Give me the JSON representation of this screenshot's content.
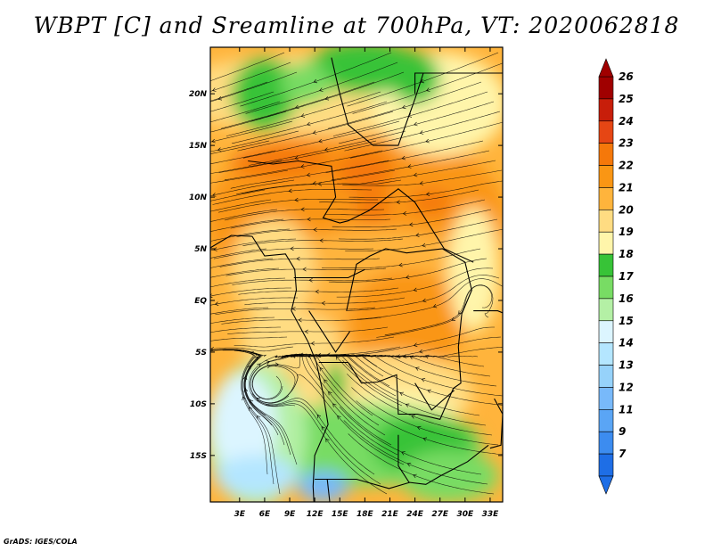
{
  "title": "WBPT [C] and Sreamline at 700hPa, VT: 2020062818",
  "credit": "GrADS: IGES/COLA",
  "map": {
    "lon_range": [
      -0.5,
      34.5
    ],
    "lat_range": [
      -19.5,
      24.5
    ],
    "x_ticks": [
      {
        "lon": 3,
        "label": "3E"
      },
      {
        "lon": 6,
        "label": "6E"
      },
      {
        "lon": 9,
        "label": "9E"
      },
      {
        "lon": 12,
        "label": "12E"
      },
      {
        "lon": 15,
        "label": "15E"
      },
      {
        "lon": 18,
        "label": "18E"
      },
      {
        "lon": 21,
        "label": "21E"
      },
      {
        "lon": 24,
        "label": "24E"
      },
      {
        "lon": 27,
        "label": "27E"
      },
      {
        "lon": 30,
        "label": "30E"
      },
      {
        "lon": 33,
        "label": "33E"
      }
    ],
    "y_ticks": [
      {
        "lat": 20,
        "label": "20N"
      },
      {
        "lat": 15,
        "label": "15N"
      },
      {
        "lat": 10,
        "label": "10N"
      },
      {
        "lat": 5,
        "label": "5N"
      },
      {
        "lat": 0,
        "label": "EQ"
      },
      {
        "lat": -5,
        "label": "5S"
      },
      {
        "lat": -10,
        "label": "10S"
      },
      {
        "lat": -15,
        "label": "15S"
      }
    ]
  },
  "colorbar": {
    "levels": [
      {
        "label": "7",
        "color": "#1e6ee6"
      },
      {
        "label": "9",
        "color": "#3c8cf0"
      },
      {
        "label": "11",
        "color": "#5aa5f5"
      },
      {
        "label": "12",
        "color": "#78b9fa"
      },
      {
        "label": "13",
        "color": "#96d2fa"
      },
      {
        "label": "14",
        "color": "#b4e6ff"
      },
      {
        "label": "15",
        "color": "#dcf5ff"
      },
      {
        "label": "16",
        "color": "#b4f0a5"
      },
      {
        "label": "17",
        "color": "#78dc64"
      },
      {
        "label": "18",
        "color": "#37c337"
      },
      {
        "label": "19",
        "color": "#fff5aa"
      },
      {
        "label": "20",
        "color": "#ffdc82"
      },
      {
        "label": "21",
        "color": "#ffb43c"
      },
      {
        "label": "22",
        "color": "#fa9614"
      },
      {
        "label": "23",
        "color": "#f5780a"
      },
      {
        "label": "24",
        "color": "#e64614"
      },
      {
        "label": "25",
        "color": "#c81e0a"
      },
      {
        "label": "26",
        "color": "#a00000"
      }
    ],
    "under_color": "#1e6ee6",
    "over_color": "#a00000"
  },
  "regions": [
    {
      "c": "#fa9614",
      "lat": 8,
      "lon": 17,
      "rlat": 9,
      "rlon": 18
    },
    {
      "c": "#ffb43c",
      "lat": 1,
      "lon": 20,
      "rlat": 6,
      "rlon": 14
    },
    {
      "c": "#ffdc82",
      "lat": 3,
      "lon": 7,
      "rlat": 5,
      "rlon": 5
    },
    {
      "c": "#fa9614",
      "lat": -2,
      "lon": 23,
      "rlat": 5,
      "rlon": 7
    },
    {
      "c": "#ffdc82",
      "lat": 20,
      "lon": 14,
      "rlat": 4,
      "rlon": 20
    },
    {
      "c": "#fff5aa",
      "lat": 19,
      "lon": 27,
      "rlat": 5,
      "rlon": 8
    },
    {
      "c": "#37c337",
      "lat": 20,
      "lon": 6,
      "rlat": 3.5,
      "rlon": 4
    },
    {
      "c": "#37c337",
      "lat": 22.5,
      "lon": 18,
      "rlat": 2.5,
      "rlon": 7
    },
    {
      "c": "#78dc64",
      "lat": 21,
      "lon": 11,
      "rlat": 2,
      "rlon": 3
    },
    {
      "c": "#37c337",
      "lat": 21.5,
      "lon": 24,
      "rlat": 2.5,
      "rlon": 3
    },
    {
      "c": "#f5780a",
      "lat": 13.5,
      "lon": 8,
      "rlat": 1.5,
      "rlon": 6
    },
    {
      "c": "#f5780a",
      "lat": 12.5,
      "lon": 18,
      "rlat": 2,
      "rlon": 3.5
    },
    {
      "c": "#f5780a",
      "lat": 9,
      "lon": 19,
      "rlat": 1.5,
      "rlon": 2
    },
    {
      "c": "#f5780a",
      "lat": 9.5,
      "lon": 26,
      "rlat": 1.2,
      "rlon": 2.5
    },
    {
      "c": "#ffdc82",
      "lat": -4,
      "lon": 9,
      "rlat": 3,
      "rlon": 6
    },
    {
      "c": "#ffdc82",
      "lat": -9,
      "lon": 20,
      "rlat": 4,
      "rlon": 11
    },
    {
      "c": "#fff5aa",
      "lat": -11,
      "lon": 22,
      "rlat": 2.5,
      "rlon": 7
    },
    {
      "c": "#78dc64",
      "lat": -14,
      "lon": 17,
      "rlat": 4,
      "rlon": 15
    },
    {
      "c": "#37c337",
      "lat": -14,
      "lon": 25,
      "rlat": 3,
      "rlon": 6
    },
    {
      "c": "#b4f0a5",
      "lat": -13,
      "lon": 5,
      "rlat": 7,
      "rlon": 6
    },
    {
      "c": "#dcf5ff",
      "lat": -12,
      "lon": 3.5,
      "rlat": 5,
      "rlon": 4
    },
    {
      "c": "#b4e6ff",
      "lat": -17,
      "lon": 5,
      "rlat": 2,
      "rlon": 5
    },
    {
      "c": "#78b9fa",
      "lat": -18,
      "lon": 13,
      "rlat": 1.5,
      "rlon": 3
    },
    {
      "c": "#fff5aa",
      "lat": 3,
      "lon": 31,
      "rlat": 6,
      "rlon": 3
    },
    {
      "c": "#37c337",
      "lat": -8,
      "lon": 14.5,
      "rlat": 2,
      "rlon": 1.2
    },
    {
      "c": "#78dc64",
      "lat": -17,
      "lon": 28,
      "rlat": 2.5,
      "rlon": 6
    }
  ]
}
